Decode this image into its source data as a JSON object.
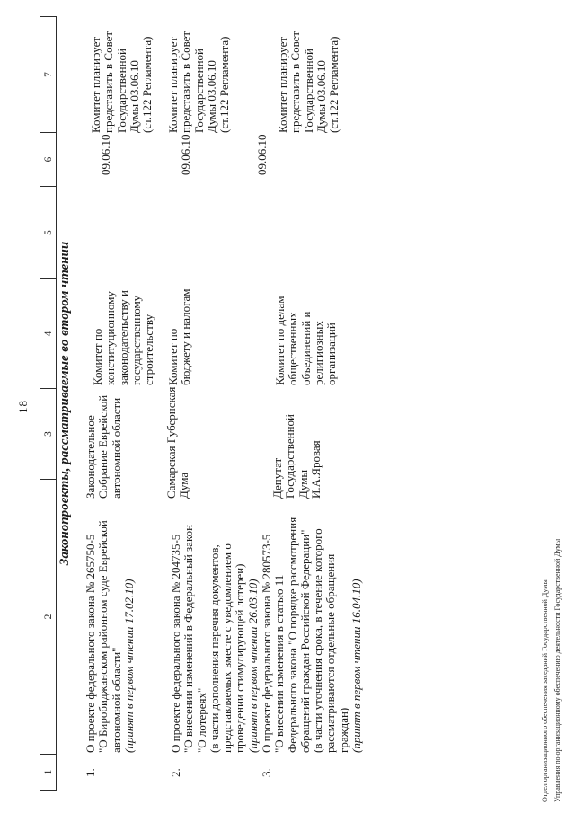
{
  "page_number": "18",
  "section_title": "Законопроекты, рассматриваемые во втором чтении",
  "column_headers": [
    "1",
    "2",
    "3",
    "4",
    "5",
    "6",
    "7"
  ],
  "rows": [
    {
      "num": "1.",
      "title_lines": [
        "О проекте федерального закона № 265750-5",
        "\"О Биробиджанском районном суде Еврейской",
        "автономной области\""
      ],
      "note_lines": [],
      "adopted_line": "(принят в первом чтении 17.02.10)",
      "initiator_lines": [
        "Законодательное",
        "Собрание Еврейской",
        "автономной области"
      ],
      "committee_lines": [
        "Комитет по",
        "конституционному",
        "законодательству и",
        "государственному",
        "строительству"
      ],
      "date": "09.06.10",
      "plan_lines": [
        "Комитет планирует",
        "представить в Совет",
        "Государственной",
        "Думы 03.06.10",
        "(ст.122 Регламента)"
      ]
    },
    {
      "num": "2.",
      "title_lines": [
        "О проекте федерального закона № 204735-5",
        "\"О внесении изменений в Федеральный закон",
        "\"О лотереях\""
      ],
      "note_lines": [
        "(в части дополнения перечня документов,",
        "представляемых вместе с  уведомлением о",
        "проведении стимулирующей лотереи)"
      ],
      "adopted_line": "(принят в первом чтении 26.03.10)",
      "initiator_lines": [
        "Самарская Губернская",
        "Дума"
      ],
      "committee_lines": [
        "Комитет по",
        "бюджету и налогам"
      ],
      "date": "09.06.10",
      "plan_lines": [
        "Комитет планирует",
        "представить в Совет",
        "Государственной",
        "Думы 03.06.10",
        "(ст.122 Регламента)"
      ]
    },
    {
      "num": "3.",
      "title_lines": [
        "О проекте федерального закона № 280573-5",
        "\"О внесении изменения в статью 11",
        "Федерального закона \"О порядке рассмотрения",
        "обращений граждан Российской Федерации\""
      ],
      "note_lines": [
        "(в части уточнения срока, в течение которого",
        "рассматриваются отдельные обращения",
        "граждан)"
      ],
      "adopted_line": "(принят в первом чтении 16.04.10)",
      "initiator_lines": [
        "Депутат",
        "Государственной",
        "Думы",
        "И.А.Яровая"
      ],
      "committee_lines": [
        "Комитет по делам",
        "общественных",
        "объединений и",
        "религиозных",
        "организаций"
      ],
      "date": "09.06.10",
      "plan_lines": [
        "Комитет планирует",
        "представить в Совет",
        "Государственной",
        "Думы 03.06.10",
        "(ст.122 Регламента)"
      ]
    }
  ],
  "footer_lines": [
    "Отдел организационного обеспечения заседаний Государственной Думы",
    "Управления по организационному обеспечению деятельности Государственной Думы"
  ]
}
